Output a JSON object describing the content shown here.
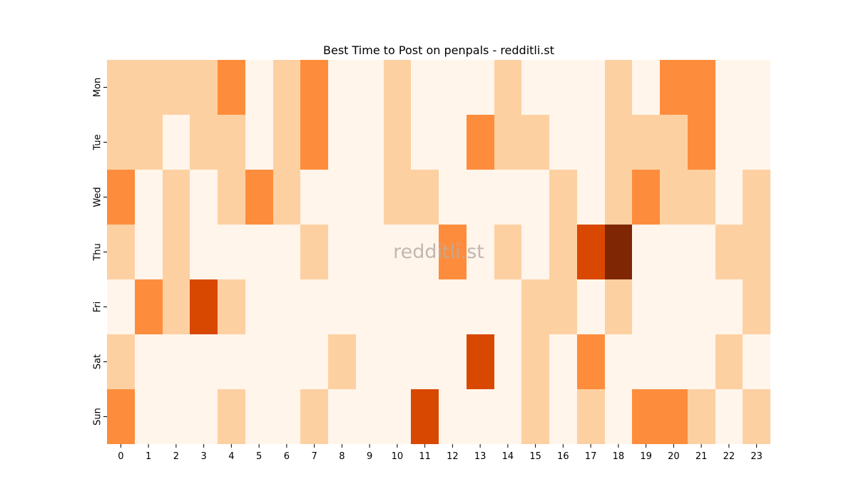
{
  "chart_data": {
    "type": "heatmap",
    "title": "Best Time to Post on penpals - redditli.st",
    "watermark": "redditli.st",
    "x_categories": [
      "0",
      "1",
      "2",
      "3",
      "4",
      "5",
      "6",
      "7",
      "8",
      "9",
      "10",
      "11",
      "12",
      "13",
      "14",
      "15",
      "16",
      "17",
      "18",
      "19",
      "20",
      "21",
      "22",
      "23"
    ],
    "y_categories": [
      "Mon",
      "Tue",
      "Wed",
      "Thu",
      "Fri",
      "Sat",
      "Sun"
    ],
    "xlabel": "",
    "ylabel": "",
    "colorbar": false,
    "value_range": [
      0,
      4
    ],
    "palette": [
      "#fff5eb",
      "#fdd0a2",
      "#fd8d3c",
      "#d94801",
      "#7f2704"
    ],
    "values": [
      [
        1,
        1,
        1,
        1,
        2,
        0,
        1,
        2,
        0,
        0,
        1,
        0,
        0,
        0,
        1,
        0,
        0,
        0,
        1,
        0,
        2,
        2,
        0,
        0
      ],
      [
        1,
        1,
        0,
        1,
        1,
        0,
        1,
        2,
        0,
        0,
        1,
        0,
        0,
        2,
        1,
        1,
        0,
        0,
        1,
        1,
        1,
        2,
        0,
        0
      ],
      [
        2,
        0,
        1,
        0,
        1,
        2,
        1,
        0,
        0,
        0,
        1,
        1,
        0,
        0,
        0,
        0,
        1,
        0,
        1,
        2,
        1,
        1,
        0,
        1
      ],
      [
        1,
        0,
        1,
        0,
        0,
        0,
        0,
        1,
        0,
        0,
        0,
        0,
        2,
        0,
        1,
        0,
        1,
        3,
        4,
        0,
        0,
        0,
        1,
        1
      ],
      [
        0,
        2,
        1,
        3,
        1,
        0,
        0,
        0,
        0,
        0,
        0,
        0,
        0,
        0,
        0,
        1,
        1,
        0,
        1,
        0,
        0,
        0,
        0,
        1
      ],
      [
        1,
        0,
        0,
        0,
        0,
        0,
        0,
        0,
        1,
        0,
        0,
        0,
        0,
        3,
        0,
        1,
        0,
        2,
        0,
        0,
        0,
        0,
        1,
        0
      ],
      [
        2,
        0,
        0,
        0,
        1,
        0,
        0,
        1,
        0,
        0,
        0,
        3,
        0,
        0,
        0,
        1,
        0,
        1,
        0,
        2,
        2,
        1,
        0,
        1
      ]
    ]
  }
}
